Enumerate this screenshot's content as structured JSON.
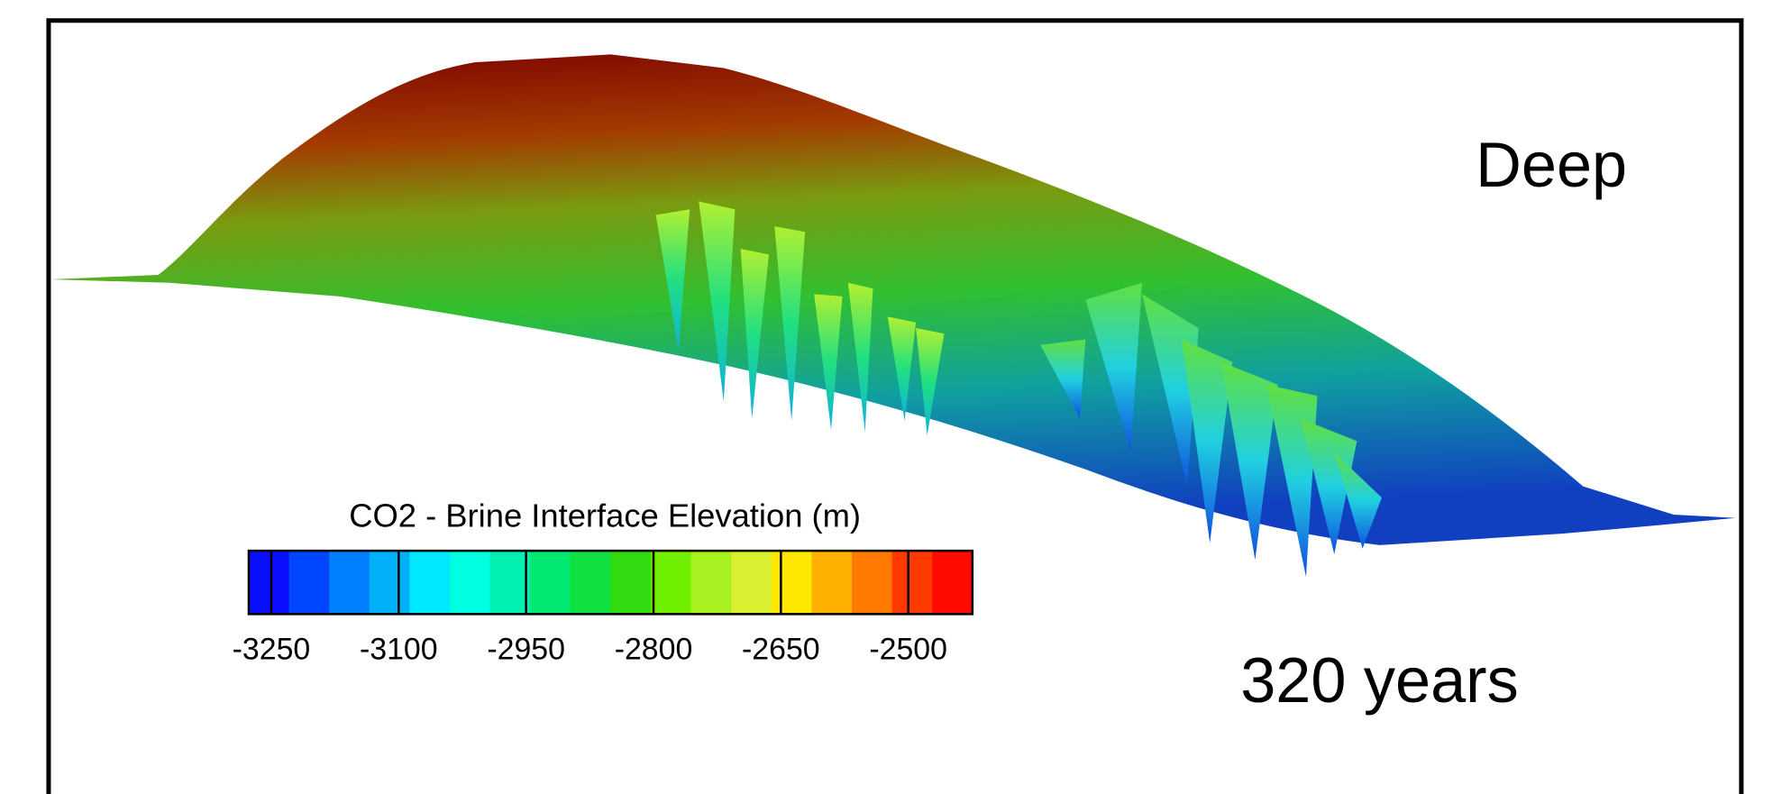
{
  "chart_data": {
    "type": "surface",
    "annotations": [
      "Deep",
      "320 years"
    ],
    "colorbar": {
      "title": "CO2 - Brine Interface Elevation (m)",
      "clim": [
        -3276.5,
        -2424.5
      ],
      "ticks": [
        -3250,
        -3100,
        -2950,
        -2800,
        -2650,
        -2500
      ],
      "colors": [
        "#0a10ff",
        "#0046ff",
        "#0080ff",
        "#00b0f8",
        "#00e8ff",
        "#00ffe0",
        "#00f0b0",
        "#00e870",
        "#10e040",
        "#30dc10",
        "#70f000",
        "#a8f020",
        "#d8f030",
        "#ffe800",
        "#ffb000",
        "#ff7800",
        "#ff3a00",
        "#ff0a00"
      ]
    }
  }
}
